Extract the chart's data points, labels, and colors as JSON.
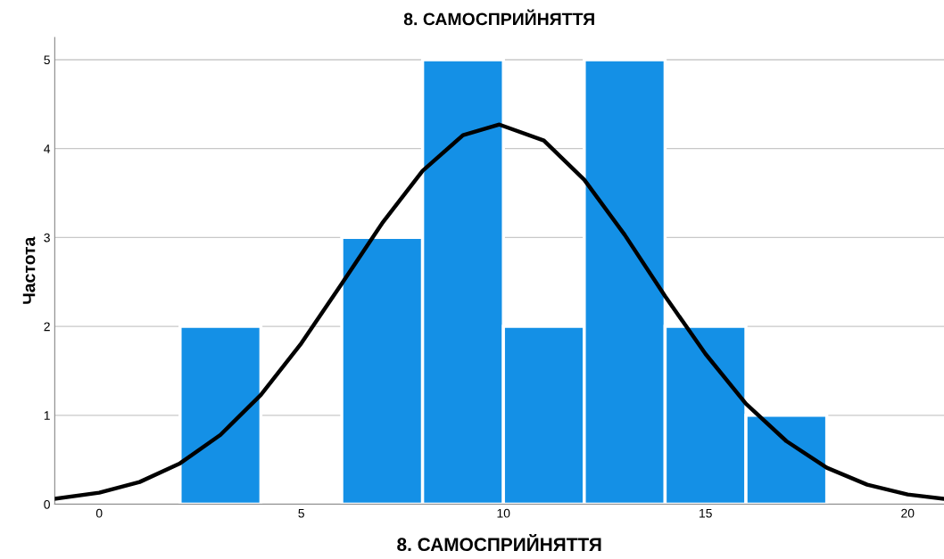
{
  "chart_data": {
    "type": "histogram",
    "title": "8. САМОСПРИЙНЯТТЯ",
    "xlabel": "8. САМОСПРИЙНЯТТЯ",
    "ylabel": "Частота",
    "bins": [
      2,
      4,
      6,
      8,
      10,
      12,
      14,
      16,
      18
    ],
    "values": [
      2,
      0,
      3,
      5,
      2,
      5,
      2,
      1
    ],
    "color": "#1490e6",
    "series": [
      {
        "type": "line",
        "color": "#000000",
        "x": [
          -1.1,
          0,
          1,
          2,
          3,
          4,
          5,
          6,
          7,
          8,
          9,
          9.9,
          11,
          12,
          13,
          14,
          15,
          16,
          17,
          18,
          19,
          20,
          20.9
        ],
        "values": [
          0.06,
          0.13,
          0.25,
          0.46,
          0.78,
          1.23,
          1.81,
          2.48,
          3.16,
          3.75,
          4.15,
          4.27,
          4.09,
          3.65,
          3.03,
          2.34,
          1.69,
          1.13,
          0.71,
          0.41,
          0.22,
          0.11,
          0.06
        ]
      }
    ],
    "xlim": [
      -1.1,
      20.9
    ],
    "xticks": [
      0,
      5,
      10,
      15,
      20
    ],
    "ylim": [
      0,
      5.25
    ],
    "yticks": [
      0,
      1,
      2,
      3,
      4,
      5
    ],
    "grid": "y",
    "legend": false
  }
}
